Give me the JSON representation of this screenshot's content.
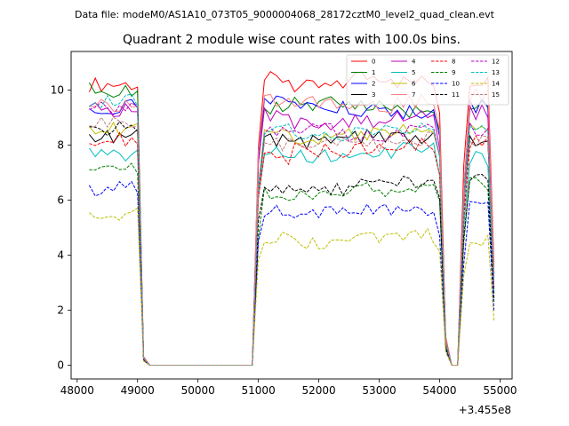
{
  "chart_data": {
    "type": "line",
    "suptitle": "Data file: modeM0/AS1A10_073T05_9000004068_28172cztM0_level2_quad_clean.evt",
    "title": "Quadrant 2 module wise count rates with 100.0s bins.",
    "xlabel": "",
    "ylabel": "",
    "offset_text": "+3.455e8",
    "xlim": [
      47900,
      55200
    ],
    "ylim": [
      -0.5,
      11.4
    ],
    "xticks": [
      48000,
      49000,
      50000,
      51000,
      52000,
      53000,
      54000,
      55000
    ],
    "xtick_labels": [
      "48000",
      "49000",
      "50000",
      "51000",
      "52000",
      "53000",
      "54000",
      "55000"
    ],
    "yticks": [
      0,
      2,
      4,
      6,
      8,
      10
    ],
    "ytick_labels": [
      "0",
      "2",
      "4",
      "6",
      "8",
      "10"
    ],
    "grid": false,
    "legend_position": "top-right",
    "series": [
      {
        "name": "0",
        "color": "#ff0000",
        "dash": "solid",
        "base": [
          10.2,
          10.3,
          10.6,
          10.4,
          10.1,
          10.5,
          10.3,
          10.4
        ]
      },
      {
        "name": "1",
        "color": "#008000",
        "dash": "solid",
        "base": [
          10.0,
          9.6,
          9.4,
          9.3,
          9.5,
          9.4,
          9.2,
          9.5
        ]
      },
      {
        "name": "2",
        "color": "#0000ff",
        "dash": "solid",
        "base": [
          9.4,
          9.5,
          9.6,
          9.7,
          9.4,
          9.3,
          9.2,
          9.4
        ]
      },
      {
        "name": "3",
        "color": "#000000",
        "dash": "solid",
        "base": [
          8.3,
          8.1,
          8.0,
          8.2,
          8.1,
          8.3,
          8.2,
          8.1
        ]
      },
      {
        "name": "4",
        "color": "#bf00bf",
        "dash": "solid",
        "base": [
          9.3,
          9.0,
          8.9,
          9.1,
          8.8,
          8.9,
          9.0,
          9.2
        ]
      },
      {
        "name": "5",
        "color": "#00bfbf",
        "dash": "solid",
        "base": [
          7.7,
          7.6,
          7.7,
          7.8,
          7.6,
          7.7,
          7.9,
          7.5
        ]
      },
      {
        "name": "6",
        "color": "#bfbf00",
        "dash": "solid",
        "base": [
          8.6,
          8.2,
          8.4,
          8.3,
          8.2,
          8.4,
          8.5,
          8.6
        ]
      },
      {
        "name": "7",
        "color": "#ff8080",
        "dash": "solid",
        "base": [
          9.5,
          9.6,
          9.7,
          9.6,
          9.5,
          9.4,
          9.6,
          9.8
        ]
      },
      {
        "name": "8",
        "color": "#ff0000",
        "dash": "dashed",
        "base": [
          8.2,
          8.0,
          8.2,
          7.5,
          7.8,
          7.9,
          8.0,
          8.1
        ]
      },
      {
        "name": "9",
        "color": "#008000",
        "dash": "dashed",
        "base": [
          7.2,
          6.5,
          6.3,
          6.2,
          6.3,
          6.4,
          6.5,
          6.6
        ]
      },
      {
        "name": "10",
        "color": "#0000ff",
        "dash": "dashed",
        "base": [
          6.4,
          5.6,
          5.7,
          5.6,
          5.5,
          5.6,
          5.5,
          5.7
        ]
      },
      {
        "name": "11",
        "color": "#000000",
        "dash": "dashed",
        "base": [
          8.6,
          6.7,
          6.8,
          6.5,
          6.4,
          6.6,
          6.6,
          6.8
        ]
      },
      {
        "name": "12",
        "color": "#bf00bf",
        "dash": "dashed",
        "base": [
          9.3,
          8.7,
          8.5,
          8.4,
          8.5,
          8.4,
          8.5,
          8.6
        ]
      },
      {
        "name": "13",
        "color": "#00bfbf",
        "dash": "dashed",
        "base": [
          9.6,
          8.4,
          8.3,
          8.5,
          8.4,
          8.5,
          8.6,
          8.7
        ]
      },
      {
        "name": "14",
        "color": "#bfbf00",
        "dash": "dashed",
        "base": [
          5.5,
          4.9,
          4.6,
          4.6,
          4.5,
          4.6,
          4.7,
          4.6
        ]
      },
      {
        "name": "15",
        "color": "#bf8080",
        "dash": "dashed",
        "base": [
          8.9,
          8.0,
          7.9,
          8.0,
          8.1,
          8.0,
          8.2,
          8.1
        ]
      }
    ]
  }
}
